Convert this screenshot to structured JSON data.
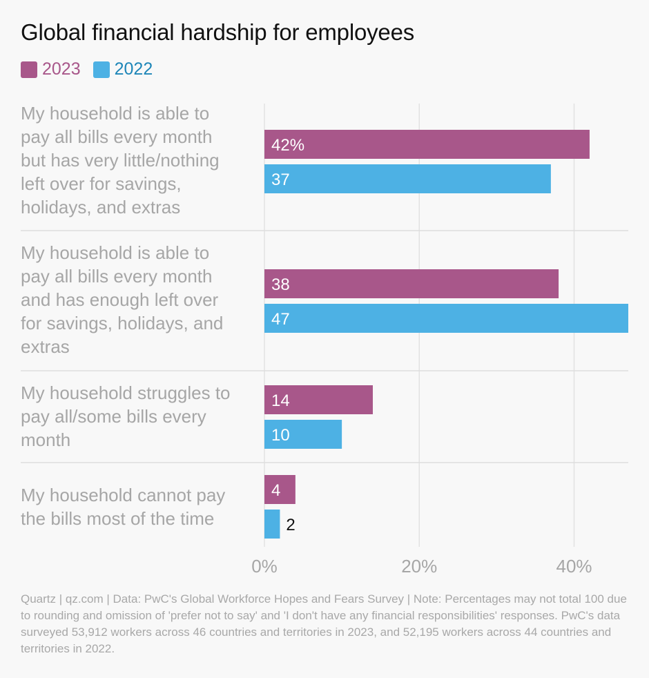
{
  "title": "Global financial hardship for employees",
  "legend": [
    {
      "label": "2023",
      "color": "#a8578a"
    },
    {
      "label": "2022",
      "color": "#4db1e4"
    }
  ],
  "chart_data": {
    "type": "bar",
    "orientation": "horizontal",
    "title": "Global financial hardship for employees",
    "categories": [
      "My household is able to pay all bills every month but has very little/nothing left over for savings, holidays, and extras",
      "My household is able to pay all bills every month and has enough left over for savings, holidays, and extras",
      "My household struggles to pay all/some bills every month",
      "My household cannot pay the bills most of the time"
    ],
    "category_lines": [
      [
        "My household is able to",
        "pay all bills every month",
        "but has very little/nothing",
        "left over for savings,",
        "holidays, and extras"
      ],
      [
        "My household is able to",
        "pay all bills every month",
        "and has enough left over",
        "for savings, holidays, and",
        "extras"
      ],
      [
        "My household struggles to",
        "pay all/some bills every",
        "month"
      ],
      [
        "My household cannot pay",
        "the bills most of the time"
      ]
    ],
    "series": [
      {
        "name": "2023",
        "color": "#a8578a",
        "values": [
          42,
          38,
          14,
          4
        ],
        "labels": [
          "42%",
          "38",
          "14",
          "4"
        ]
      },
      {
        "name": "2022",
        "color": "#4db1e4",
        "values": [
          37,
          47,
          10,
          2
        ],
        "labels": [
          "37",
          "47",
          "10",
          "2"
        ]
      }
    ],
    "xlim": [
      0,
      47
    ],
    "xticks": [
      0,
      20,
      40
    ],
    "xtick_labels": [
      "0%",
      "20%",
      "40%"
    ],
    "grid": true,
    "legend_position": "top-left"
  },
  "footnote": "Quartz | qz.com | Data: PwC's Global Workforce Hopes and Fears Survey | Note: Percentages may not total 100 due to rounding and omission of 'prefer not to say' and 'I don't have any financial responsibilities' responses. PwC's data surveyed 53,912 workers across 46 countries and territories in 2023, and 52,195 workers across 44 countries and territories in 2022."
}
